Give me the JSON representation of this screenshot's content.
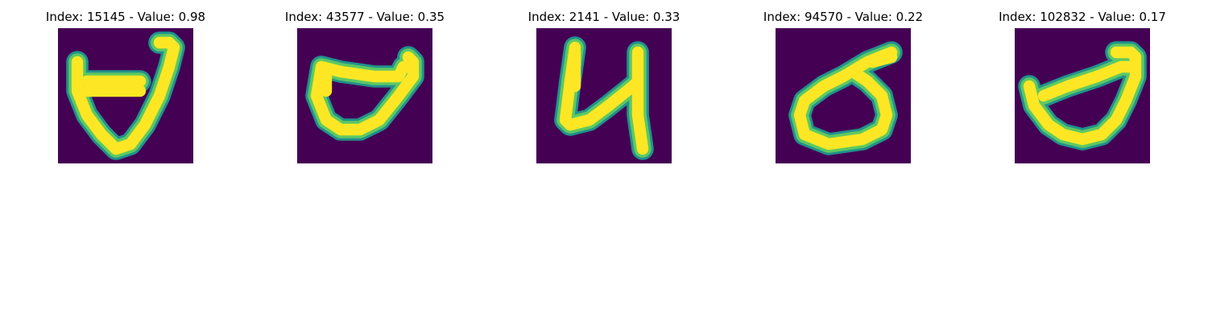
{
  "colors": {
    "background": "#440154",
    "stroke_edge": "#21918c",
    "stroke_mid": "#5ec962",
    "stroke_core": "#fde725"
  },
  "panels": [
    {
      "title": "Index: 15145 - Value: 0.98",
      "index": 15145,
      "value": 0.98
    },
    {
      "title": "Index: 43577 - Value: 0.35",
      "index": 43577,
      "value": 0.35
    },
    {
      "title": "Index: 2141 - Value: 0.33",
      "index": 2141,
      "value": 0.33
    },
    {
      "title": "Index: 94570 - Value: 0.22",
      "index": 94570,
      "value": 0.22
    },
    {
      "title": "Index: 102832 - Value: 0.17",
      "index": 102832,
      "value": 0.17
    }
  ]
}
